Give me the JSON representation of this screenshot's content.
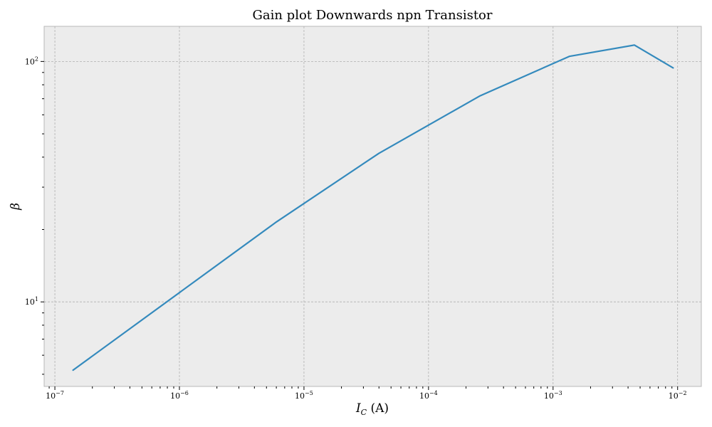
{
  "chart_data": {
    "type": "line",
    "title": "Gain plot Downwards npn Transistor",
    "xlabel": "I_C (A)",
    "ylabel": "β",
    "x_scale": "log",
    "y_scale": "log",
    "xlim": [
      8.2e-08,
      0.0155
    ],
    "ylim": [
      4.45,
      140
    ],
    "grid": true,
    "x_ticks": [
      {
        "base": "10",
        "exp": "−7",
        "value": 1e-07
      },
      {
        "base": "10",
        "exp": "−6",
        "value": 1e-06
      },
      {
        "base": "10",
        "exp": "−5",
        "value": 1e-05
      },
      {
        "base": "10",
        "exp": "−4",
        "value": 0.0001
      },
      {
        "base": "10",
        "exp": "−3",
        "value": 0.001
      },
      {
        "base": "10",
        "exp": "−2",
        "value": 0.01
      }
    ],
    "y_ticks": [
      {
        "base": "10",
        "exp": "1",
        "value": 10
      },
      {
        "base": "10",
        "exp": "2",
        "value": 100
      }
    ],
    "series": [
      {
        "color": "#348abd",
        "x": [
          1.4e-07,
          6e-06,
          4e-05,
          0.00026,
          0.00135,
          0.0045,
          0.0092
        ],
        "y": [
          5.2,
          21.5,
          41.5,
          72,
          105,
          117,
          94
        ]
      }
    ]
  }
}
